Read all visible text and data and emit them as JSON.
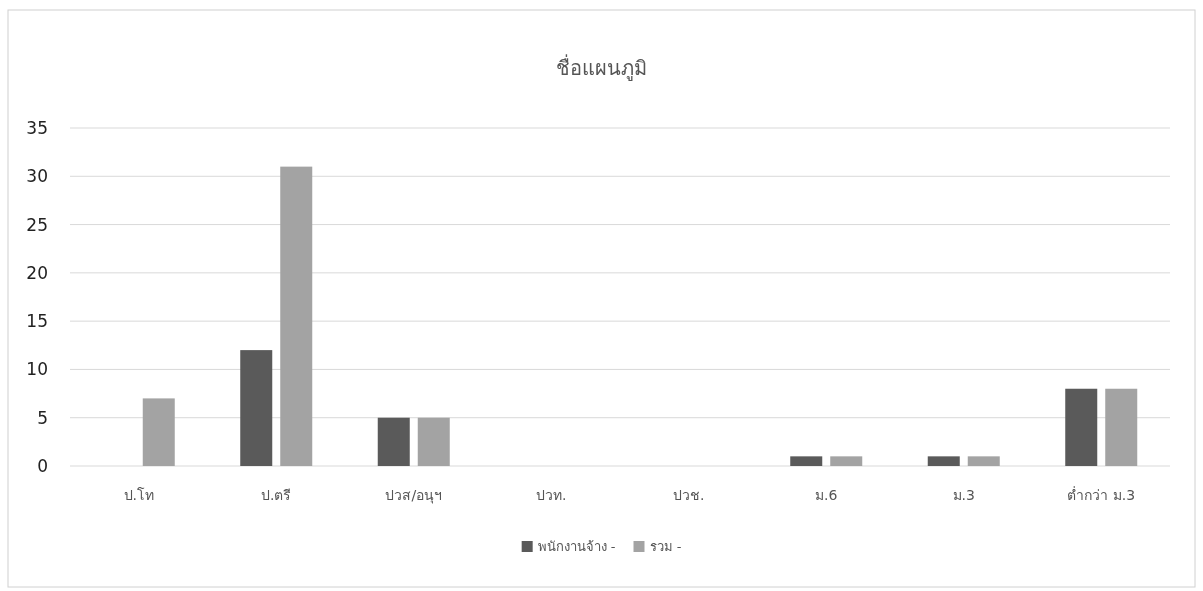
{
  "chart_data": {
    "type": "bar",
    "title": "ชื่อแผนภูมิ",
    "categories": [
      "ป.โท",
      "ป.ตรี",
      "ปวส/อนุฯ",
      "ปวท.",
      "ปวช.",
      "ม.6",
      "ม.3",
      "ต่ำกว่า ม.3"
    ],
    "series": [
      {
        "name": "พนักงานจ้าง -",
        "color": "#5a5a5a",
        "values": [
          0,
          12,
          5,
          0,
          0,
          1,
          1,
          8
        ]
      },
      {
        "name": "รวม -",
        "color": "#a3a3a3",
        "values": [
          7,
          31,
          5,
          0,
          0,
          1,
          1,
          8
        ]
      }
    ],
    "ylim": [
      0,
      35
    ],
    "yticks": [
      0,
      5,
      10,
      15,
      20,
      25,
      30,
      35
    ],
    "grid": "y",
    "legend": "bottom"
  }
}
